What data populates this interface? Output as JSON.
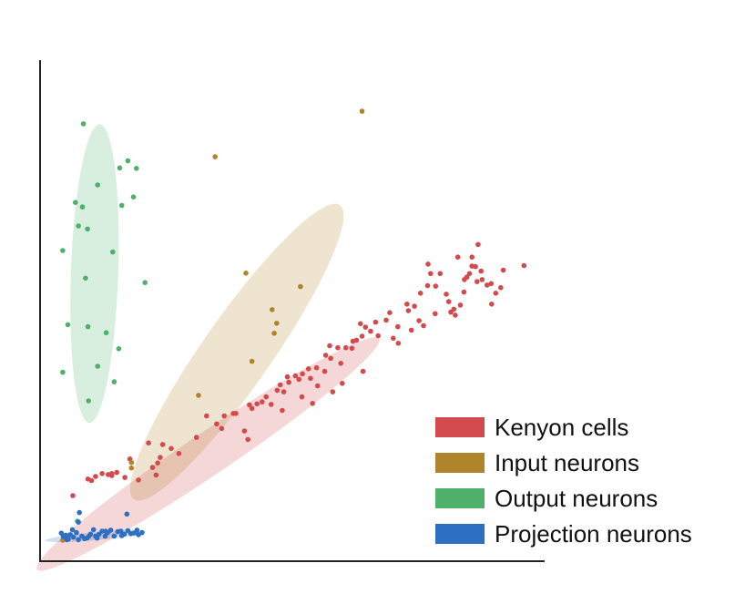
{
  "chart_data": {
    "type": "scatter",
    "title": "",
    "xlabel": "",
    "ylabel": "",
    "xlim": [
      0,
      100
    ],
    "ylim": [
      0,
      100
    ],
    "grid": false,
    "legend_position": "bottom-right",
    "series": [
      {
        "name": "Kenyon cells",
        "color": "#d24a4d",
        "ellipse": {
          "cx": 33.3,
          "cy": 21.4,
          "rx": 40.9,
          "ry": 4.2,
          "angle_deg": -34
        },
        "points": [
          [
            6.5,
            13.1
          ],
          [
            11.0,
            16.9
          ],
          [
            12.3,
            17.5
          ],
          [
            13.5,
            17.3
          ],
          [
            14.2,
            17.1
          ],
          [
            14.2,
            17.5
          ],
          [
            15.2,
            17.7
          ],
          [
            17.8,
            20.4
          ],
          [
            21.5,
            23.6
          ],
          [
            22.3,
            18.7
          ],
          [
            23.3,
            19.6
          ],
          [
            23.8,
            20.7
          ],
          [
            24.3,
            23.3
          ],
          [
            26.0,
            22.5
          ],
          [
            33.0,
            29.0
          ],
          [
            35.0,
            27.4
          ],
          [
            36.5,
            29.0
          ],
          [
            38.3,
            29.5
          ],
          [
            38.8,
            29.5
          ],
          [
            41.5,
            31.2
          ],
          [
            43.0,
            31.4
          ],
          [
            41.2,
            24.3
          ],
          [
            44.8,
            32.8
          ],
          [
            45.8,
            31.3
          ],
          [
            47.0,
            34.1
          ],
          [
            47.6,
            35.2
          ],
          [
            48.3,
            33.8
          ],
          [
            49.0,
            36.8
          ],
          [
            49.3,
            35.7
          ],
          [
            50.6,
            37.0
          ],
          [
            51.3,
            36.3
          ],
          [
            52.0,
            37.4
          ],
          [
            53.2,
            38.4
          ],
          [
            54.8,
            38.6
          ],
          [
            53.6,
            36.5
          ],
          [
            56.4,
            37.9
          ],
          [
            56.6,
            41.1
          ],
          [
            57.4,
            43.0
          ],
          [
            57.6,
            40.5
          ],
          [
            59.9,
            35.5
          ],
          [
            59.6,
            39.5
          ],
          [
            60.6,
            42.6
          ],
          [
            61.8,
            42.5
          ],
          [
            62.7,
            44.1
          ],
          [
            63.5,
            47.4
          ],
          [
            63.8,
            44.9
          ],
          [
            64.5,
            46.7
          ],
          [
            65.5,
            45.9
          ],
          [
            66.5,
            47.7
          ],
          [
            68.6,
            48.1
          ],
          [
            69.3,
            49.6
          ],
          [
            70.9,
            46.8
          ],
          [
            72.7,
            51.3
          ],
          [
            73.0,
            50.0
          ],
          [
            74.2,
            50.9
          ],
          [
            75.1,
            48.0
          ],
          [
            73.6,
            46.1
          ],
          [
            75.4,
            53.5
          ],
          [
            76.8,
            55.0
          ],
          [
            76.9,
            59.3
          ],
          [
            77.4,
            57.4
          ],
          [
            78.3,
            49.4
          ],
          [
            78.4,
            54.9
          ],
          [
            79.3,
            57.4
          ],
          [
            80.5,
            53.3
          ],
          [
            81.4,
            49.7
          ],
          [
            82.3,
            49.1
          ],
          [
            83.3,
            51.1
          ],
          [
            84.1,
            56.2
          ],
          [
            84.6,
            56.7
          ],
          [
            85.1,
            57.4
          ],
          [
            85.6,
            58.9
          ],
          [
            86.6,
            55.8
          ],
          [
            86.3,
            58.8
          ],
          [
            85.6,
            60.7
          ],
          [
            86.8,
            63.2
          ],
          [
            87.6,
            56.2
          ],
          [
            88.6,
            55.1
          ],
          [
            89.4,
            55.4
          ],
          [
            90.3,
            53.5
          ],
          [
            89.5,
            51.3
          ],
          [
            91.3,
            54.6
          ],
          [
            91.8,
            58.1
          ],
          [
            95.9,
            59.0
          ],
          [
            82.8,
            60.7
          ],
          [
            87.4,
            57.9
          ],
          [
            84.0,
            53.7
          ],
          [
            82.0,
            50.3
          ],
          [
            81.0,
            51.8
          ],
          [
            76.0,
            47.0
          ],
          [
            70.0,
            44.5
          ],
          [
            67.0,
            45.0
          ],
          [
            58.0,
            33.8
          ],
          [
            54.0,
            31.5
          ],
          [
            48.0,
            30.1
          ],
          [
            40.5,
            26.0
          ],
          [
            36.0,
            26.5
          ],
          [
            31.0,
            24.7
          ],
          [
            27.5,
            21.5
          ],
          [
            23.0,
            17.2
          ],
          [
            19.5,
            16.2
          ],
          [
            16.8,
            16.7
          ],
          [
            10.2,
            16.1
          ],
          [
            9.5,
            16.4
          ],
          [
            64.0,
            37.9
          ],
          [
            44.0,
            31.8
          ],
          [
            42.0,
            30.5
          ],
          [
            51.9,
            32.8
          ],
          [
            55.0,
            35.0
          ],
          [
            59.0,
            42.6
          ],
          [
            62.0,
            43.9
          ],
          [
            71.0,
            43.5
          ]
        ]
      },
      {
        "name": "Input neurons",
        "color": "#b0842a",
        "ellipse": {
          "cx": 39.0,
          "cy": 41.7,
          "rx": 35.6,
          "ry": 6.8,
          "angle_deg": -55
        },
        "points": [
          [
            63.8,
            89.8
          ],
          [
            34.7,
            80.7
          ],
          [
            40.8,
            57.5
          ],
          [
            51.6,
            54.8
          ],
          [
            46.0,
            50.2
          ],
          [
            46.9,
            47.5
          ],
          [
            46.4,
            45.5
          ],
          [
            42.0,
            39.9
          ],
          [
            31.4,
            33.1
          ],
          [
            18.1,
            19.7
          ],
          [
            18.1,
            18.6
          ],
          [
            4.5,
            4.2
          ]
        ]
      },
      {
        "name": "Output neurons",
        "color": "#4fb06c",
        "ellipse": {
          "cx": 10.8,
          "cy": 57.4,
          "rx": 29.6,
          "ry": 4.7,
          "angle_deg": -88
        },
        "points": [
          [
            8.6,
            87.3
          ],
          [
            15.8,
            78.5
          ],
          [
            17.4,
            79.9
          ],
          [
            19.1,
            78.4
          ],
          [
            11.4,
            75.1
          ],
          [
            18.5,
            72.7
          ],
          [
            7.0,
            71.6
          ],
          [
            16.2,
            71.0
          ],
          [
            8.4,
            70.7
          ],
          [
            7.6,
            66.9
          ],
          [
            9.4,
            66.3
          ],
          [
            14.4,
            61.7
          ],
          [
            4.5,
            62.0
          ],
          [
            9.0,
            56.5
          ],
          [
            20.8,
            55.6
          ],
          [
            5.5,
            47.2
          ],
          [
            9.5,
            46.8
          ],
          [
            13.1,
            45.6
          ],
          [
            15.6,
            42.4
          ],
          [
            11.4,
            38.9
          ],
          [
            4.5,
            37.7
          ],
          [
            14.7,
            35.8
          ],
          [
            9.6,
            32.0
          ],
          [
            7.4,
            8.0
          ]
        ]
      },
      {
        "name": "Projection neurons",
        "color": "#2d6fc0",
        "ellipse": {
          "cx": 11.0,
          "cy": 5.0,
          "rx": 10.0,
          "ry": 0.8,
          "angle_deg": -5
        },
        "points": [
          [
            4.2,
            5.6
          ],
          [
            4.6,
            4.9
          ],
          [
            5.1,
            5.2
          ],
          [
            5.6,
            4.4
          ],
          [
            6.0,
            5.3
          ],
          [
            6.6,
            4.8
          ],
          [
            7.2,
            5.7
          ],
          [
            7.6,
            4.3
          ],
          [
            8.3,
            5.0
          ],
          [
            8.8,
            4.5
          ],
          [
            9.3,
            4.6
          ],
          [
            10.0,
            5.4
          ],
          [
            10.6,
            6.3
          ],
          [
            11.3,
            4.6
          ],
          [
            11.7,
            5.4
          ],
          [
            12.3,
            6.0
          ],
          [
            12.9,
            5.0
          ],
          [
            13.4,
            5.7
          ],
          [
            14.0,
            6.2
          ],
          [
            14.7,
            5.0
          ],
          [
            15.4,
            5.9
          ],
          [
            16.0,
            6.0
          ],
          [
            16.7,
            5.4
          ],
          [
            17.4,
            6.1
          ],
          [
            18.0,
            5.5
          ],
          [
            18.6,
            5.6
          ],
          [
            19.2,
            6.2
          ],
          [
            19.5,
            5.3
          ],
          [
            20.2,
            5.7
          ],
          [
            17.2,
            9.4
          ],
          [
            7.8,
            9.7
          ],
          [
            7.6,
            7.8
          ],
          [
            5.3,
            4.3
          ],
          [
            6.4,
            6.3
          ],
          [
            9.7,
            5.0
          ],
          [
            16.2,
            5.1
          ],
          [
            13.0,
            6.0
          ],
          [
            11.0,
            5.0
          ]
        ]
      }
    ]
  }
}
